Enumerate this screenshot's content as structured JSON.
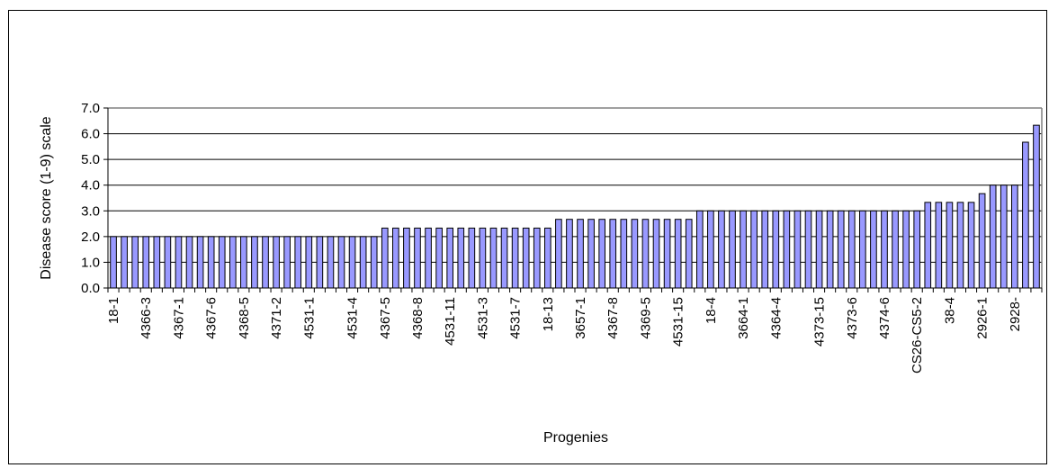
{
  "chart_data": {
    "type": "bar",
    "xlabel": "Progenies",
    "ylabel": "Disease score (1-9) scale",
    "ylim": [
      0,
      7
    ],
    "y_ticks": [
      "0.0",
      "1.0",
      "2.0",
      "3.0",
      "4.0",
      "5.0",
      "6.0",
      "7.0"
    ],
    "grid": true,
    "bar_color": "#9999ff",
    "tick_labels": [
      "18-1",
      "4366-3",
      "4367-1",
      "4367-6",
      "4368-5",
      "4371-2",
      "4531-1",
      "4531-4",
      "4367-5",
      "4368-8",
      "4531-11",
      "4531-3",
      "4531-7",
      "18-13",
      "3657-1",
      "4367-8",
      "4369-5",
      "4531-15",
      "18-4",
      "3664-1",
      "4364-4",
      "4373-15",
      "4373-6",
      "4374-6",
      "CS26-CS5-2",
      "38-4",
      "2926-1",
      "2928-"
    ],
    "values": [
      2.0,
      2.0,
      2.0,
      2.0,
      2.0,
      2.0,
      2.0,
      2.0,
      2.0,
      2.0,
      2.0,
      2.0,
      2.0,
      2.0,
      2.0,
      2.0,
      2.0,
      2.0,
      2.0,
      2.0,
      2.0,
      2.0,
      2.0,
      2.0,
      2.0,
      2.33,
      2.33,
      2.33,
      2.33,
      2.33,
      2.33,
      2.33,
      2.33,
      2.33,
      2.33,
      2.33,
      2.33,
      2.33,
      2.33,
      2.33,
      2.33,
      2.67,
      2.67,
      2.67,
      2.67,
      2.67,
      2.67,
      2.67,
      2.67,
      2.67,
      2.67,
      2.67,
      2.67,
      2.67,
      3.0,
      3.0,
      3.0,
      3.0,
      3.0,
      3.0,
      3.0,
      3.0,
      3.0,
      3.0,
      3.0,
      3.0,
      3.0,
      3.0,
      3.0,
      3.0,
      3.0,
      3.0,
      3.0,
      3.0,
      3.0,
      3.33,
      3.33,
      3.33,
      3.33,
      3.33,
      3.67,
      4.0,
      4.0,
      4.0,
      5.67,
      6.33
    ]
  }
}
